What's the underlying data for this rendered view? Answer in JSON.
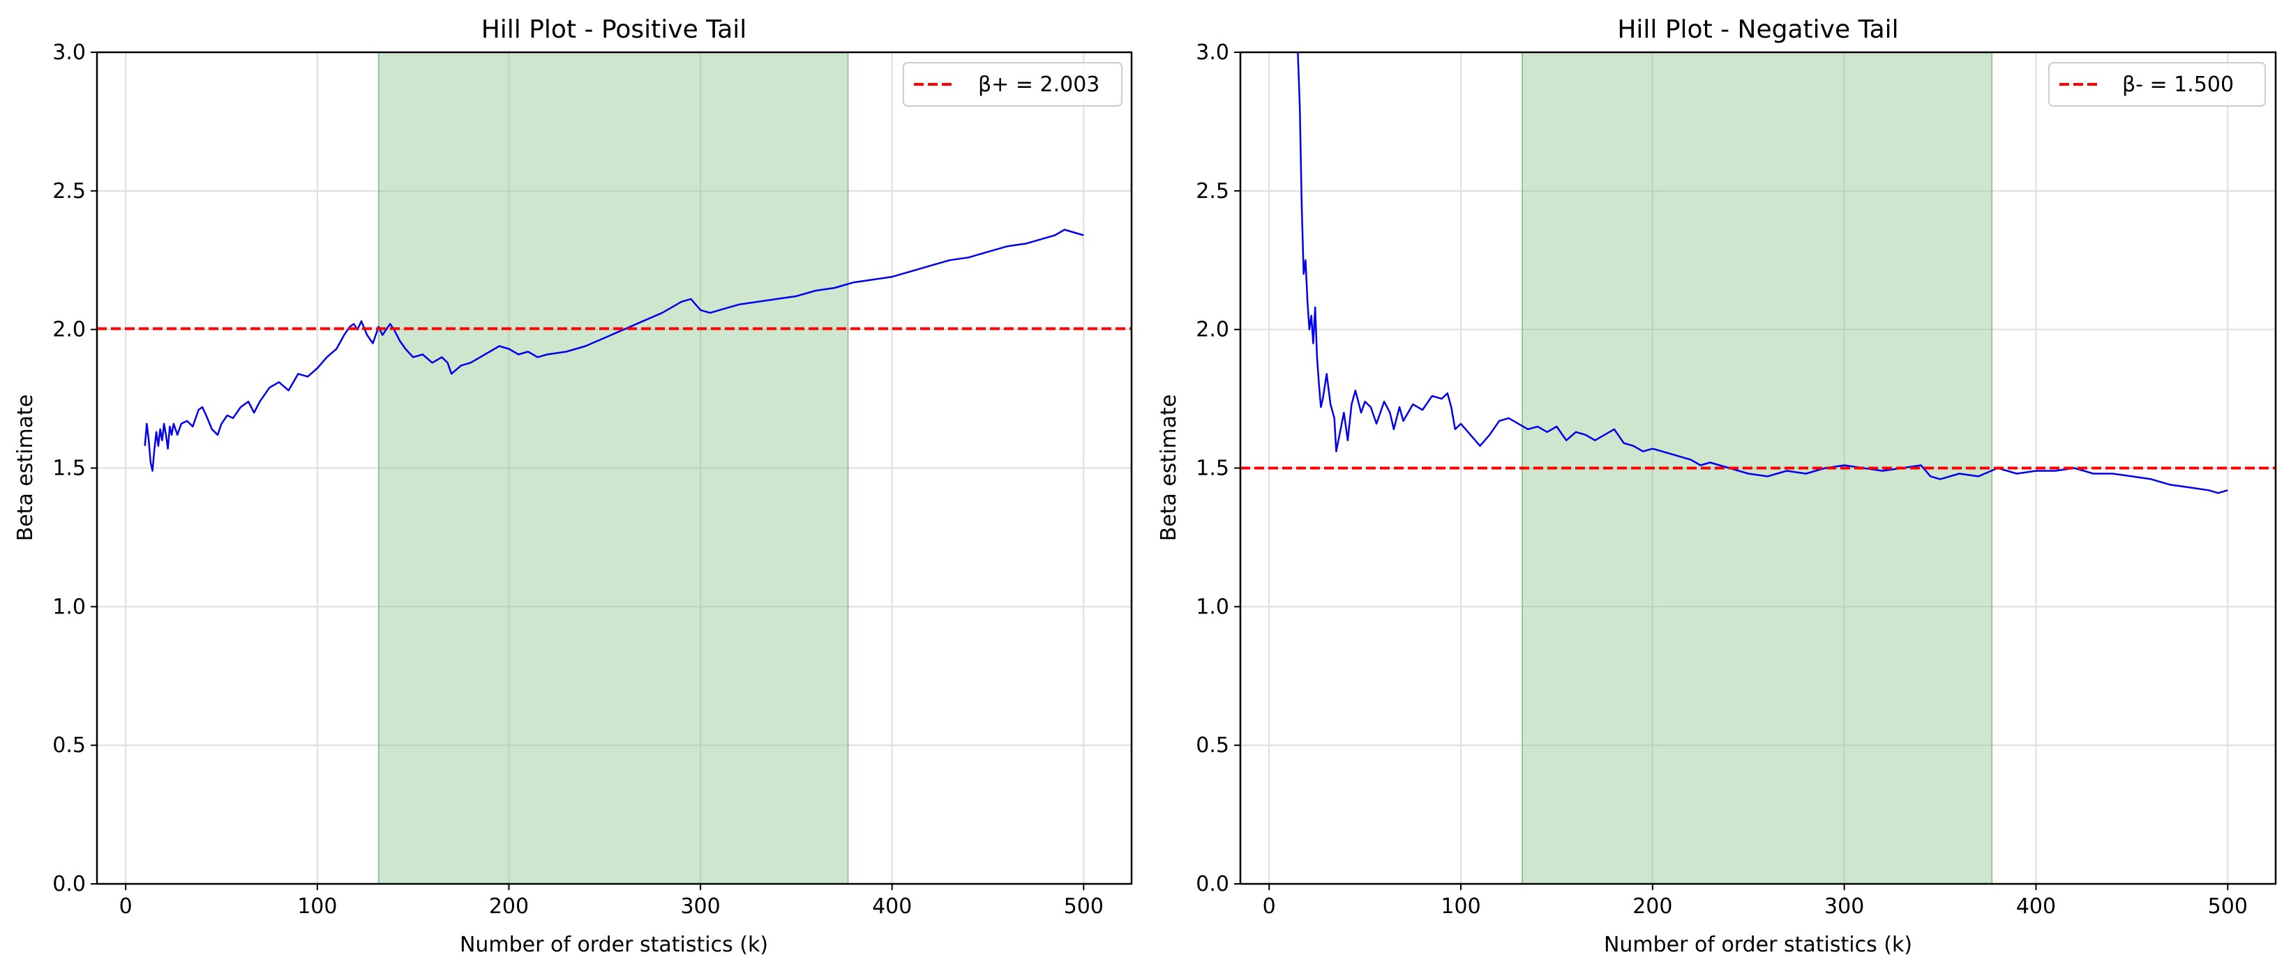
{
  "chart_data": [
    {
      "type": "line",
      "title": "Hill Plot - Positive Tail",
      "xlabel": "Number of order statistics (k)",
      "ylabel": "Beta estimate",
      "xlim": [
        -15,
        525
      ],
      "ylim": [
        0.0,
        3.0
      ],
      "xticks": [
        0,
        100,
        200,
        300,
        400,
        500
      ],
      "yticks": [
        0.0,
        0.5,
        1.0,
        1.5,
        2.0,
        2.5,
        3.0
      ],
      "xtick_labels": [
        "0",
        "100",
        "200",
        "300",
        "400",
        "500"
      ],
      "ytick_labels": [
        "0.0",
        "0.5",
        "1.0",
        "1.5",
        "2.0",
        "2.5",
        "3.0"
      ],
      "grid": true,
      "legend_position": "top-right",
      "shaded_region": {
        "x_start": 132,
        "x_end": 377,
        "color": "#cde5cd"
      },
      "reference_line": {
        "y": 2.003,
        "label": "β+ = 2.003",
        "color": "#ff0000",
        "style": "dashed"
      },
      "series": [
        {
          "color": "#0000ee",
          "x": [
            10,
            11,
            12,
            13,
            14,
            15,
            16,
            17,
            18,
            19,
            20,
            21,
            22,
            23,
            24,
            25,
            27,
            29,
            32,
            35,
            38,
            40,
            42,
            45,
            48,
            50,
            53,
            56,
            60,
            64,
            67,
            70,
            75,
            80,
            85,
            90,
            95,
            100,
            105,
            110,
            114,
            117,
            119,
            121,
            123,
            126,
            129,
            132,
            134,
            136,
            138,
            140,
            143,
            146,
            150,
            155,
            160,
            165,
            168,
            170,
            175,
            180,
            185,
            190,
            195,
            200,
            205,
            210,
            215,
            220,
            230,
            240,
            250,
            260,
            270,
            280,
            285,
            290,
            295,
            300,
            305,
            310,
            320,
            330,
            340,
            350,
            360,
            370,
            375,
            380,
            390,
            400,
            410,
            420,
            430,
            440,
            450,
            460,
            470,
            480,
            485,
            490,
            495,
            500
          ],
          "y": [
            1.58,
            1.66,
            1.6,
            1.52,
            1.49,
            1.57,
            1.63,
            1.58,
            1.64,
            1.6,
            1.66,
            1.62,
            1.57,
            1.65,
            1.62,
            1.66,
            1.62,
            1.66,
            1.67,
            1.65,
            1.71,
            1.72,
            1.69,
            1.64,
            1.62,
            1.66,
            1.69,
            1.68,
            1.72,
            1.74,
            1.7,
            1.74,
            1.79,
            1.81,
            1.78,
            1.84,
            1.83,
            1.86,
            1.9,
            1.93,
            1.98,
            2.01,
            2.02,
            2.0,
            2.03,
            1.98,
            1.95,
            2.01,
            1.98,
            2.0,
            2.02,
            2.0,
            1.96,
            1.93,
            1.9,
            1.91,
            1.88,
            1.9,
            1.88,
            1.84,
            1.87,
            1.88,
            1.9,
            1.92,
            1.94,
            1.93,
            1.91,
            1.92,
            1.9,
            1.91,
            1.92,
            1.94,
            1.97,
            2.0,
            2.03,
            2.06,
            2.08,
            2.1,
            2.11,
            2.07,
            2.06,
            2.07,
            2.09,
            2.1,
            2.11,
            2.12,
            2.14,
            2.15,
            2.16,
            2.17,
            2.18,
            2.19,
            2.21,
            2.23,
            2.25,
            2.26,
            2.28,
            2.3,
            2.31,
            2.33,
            2.34,
            2.36,
            2.35,
            2.34
          ]
        }
      ]
    },
    {
      "type": "line",
      "title": "Hill Plot - Negative Tail",
      "xlabel": "Number of order statistics (k)",
      "ylabel": "Beta estimate",
      "xlim": [
        -15,
        525
      ],
      "ylim": [
        0.0,
        3.0
      ],
      "xticks": [
        0,
        100,
        200,
        300,
        400,
        500
      ],
      "yticks": [
        0.0,
        0.5,
        1.0,
        1.5,
        2.0,
        2.5,
        3.0
      ],
      "xtick_labels": [
        "0",
        "100",
        "200",
        "300",
        "400",
        "500"
      ],
      "ytick_labels": [
        "0.0",
        "0.5",
        "1.0",
        "1.5",
        "2.0",
        "2.5",
        "3.0"
      ],
      "grid": true,
      "legend_position": "top-right",
      "shaded_region": {
        "x_start": 132,
        "x_end": 377,
        "color": "#cde5cd"
      },
      "reference_line": {
        "y": 1.5,
        "label": "β- = 1.500",
        "color": "#ff0000",
        "style": "dashed"
      },
      "series": [
        {
          "color": "#0000ee",
          "x": [
            15,
            16,
            17,
            18,
            19,
            20,
            21,
            22,
            23,
            24,
            25,
            26,
            27,
            28,
            30,
            32,
            34,
            35,
            37,
            39,
            41,
            43,
            45,
            48,
            50,
            53,
            56,
            60,
            63,
            65,
            68,
            70,
            75,
            80,
            85,
            90,
            93,
            95,
            97,
            100,
            105,
            110,
            115,
            120,
            125,
            130,
            135,
            140,
            145,
            150,
            155,
            160,
            165,
            170,
            175,
            180,
            185,
            190,
            195,
            200,
            205,
            210,
            215,
            220,
            225,
            230,
            240,
            250,
            260,
            270,
            280,
            290,
            300,
            310,
            320,
            330,
            340,
            345,
            350,
            360,
            370,
            380,
            390,
            400,
            410,
            420,
            430,
            440,
            450,
            460,
            470,
            480,
            490,
            495,
            500
          ],
          "y": [
            3.0,
            2.8,
            2.45,
            2.2,
            2.25,
            2.1,
            2.0,
            2.05,
            1.95,
            2.08,
            1.9,
            1.8,
            1.72,
            1.75,
            1.84,
            1.73,
            1.68,
            1.56,
            1.63,
            1.7,
            1.6,
            1.73,
            1.78,
            1.7,
            1.74,
            1.72,
            1.66,
            1.74,
            1.7,
            1.64,
            1.72,
            1.67,
            1.73,
            1.71,
            1.76,
            1.75,
            1.77,
            1.72,
            1.64,
            1.66,
            1.62,
            1.58,
            1.62,
            1.67,
            1.68,
            1.66,
            1.64,
            1.65,
            1.63,
            1.65,
            1.6,
            1.63,
            1.62,
            1.6,
            1.62,
            1.64,
            1.59,
            1.58,
            1.56,
            1.57,
            1.56,
            1.55,
            1.54,
            1.53,
            1.51,
            1.52,
            1.5,
            1.48,
            1.47,
            1.49,
            1.48,
            1.5,
            1.51,
            1.5,
            1.49,
            1.5,
            1.51,
            1.47,
            1.46,
            1.48,
            1.47,
            1.5,
            1.48,
            1.49,
            1.49,
            1.5,
            1.48,
            1.48,
            1.47,
            1.46,
            1.44,
            1.43,
            1.42,
            1.41,
            1.42
          ]
        }
      ]
    }
  ]
}
